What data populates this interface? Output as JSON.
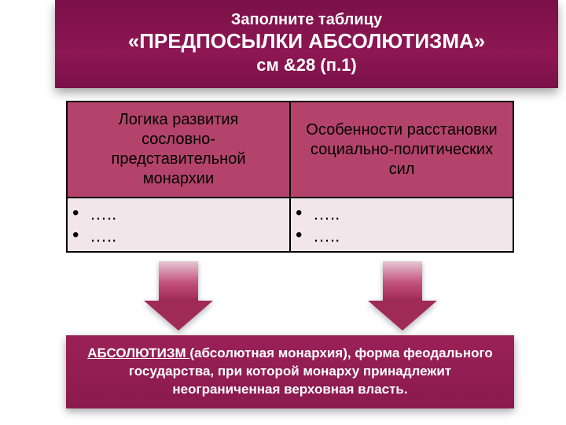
{
  "header": {
    "line1": "Заполните таблицу",
    "line2": "«ПРЕДПОСЫЛКИ АБСОЛЮТИЗМА»",
    "line3": "см &28 (п.1)"
  },
  "table": {
    "headers": [
      "Логика развития сословно-представительной монархии",
      "Особенности расстановки социально-политических сил"
    ],
    "cells": [
      {
        "bullets": [
          "…..",
          "….."
        ]
      },
      {
        "bullets": [
          "…..",
          "….."
        ]
      }
    ],
    "header_bg": "#b4436c",
    "cell_bg": "#f2e6ea",
    "border_color": "#000000",
    "header_fontsize": 20,
    "cell_fontsize": 22
  },
  "arrows": {
    "count": 2,
    "gradient_top": "#e8c7d2",
    "gradient_mid": "#c2517a",
    "gradient_bottom": "#a02a56",
    "head_color": "#a02a56"
  },
  "definition": {
    "term": "АБСОЛЮТИЗМ ",
    "rest": "(абсолютная монархия), форма феодального государства, при которой монарху принадлежит неограниченная верховная власть.",
    "bg": "#8e1753",
    "text_color": "#ffffff",
    "fontsize": 17
  },
  "theme": {
    "header_bg": "#8e1753",
    "header_text": "#ffffff",
    "page_bg": "#ffffff"
  }
}
